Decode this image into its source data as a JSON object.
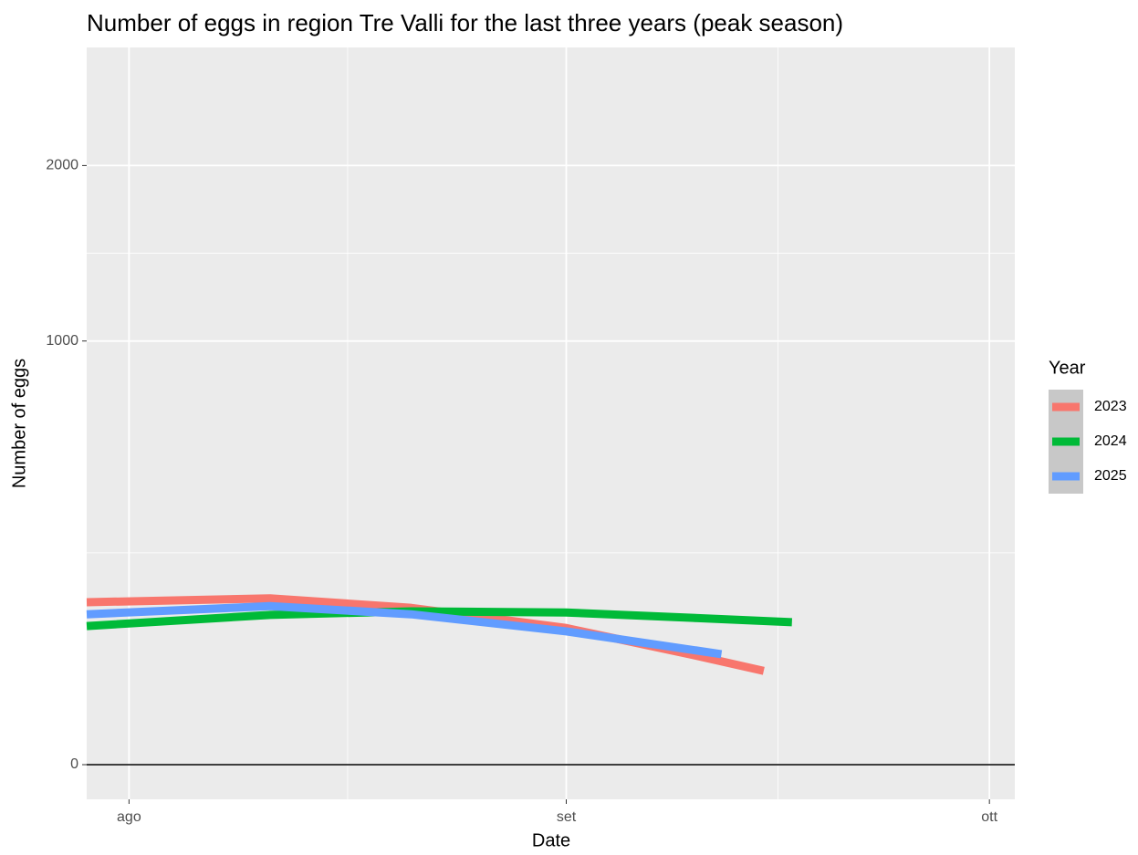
{
  "chart_data": {
    "type": "line",
    "title": "Number of eggs in region Tre Valli for the last three years (peak season)",
    "x_label": "Date",
    "y_label": "Number of eggs",
    "y_scale": "sqrt",
    "grid": true,
    "xlim": [
      -3,
      62.8
    ],
    "ylim": [
      0,
      2866
    ],
    "xticks": [
      {
        "value": 0,
        "label": "ago"
      },
      {
        "value": 31,
        "label": "set"
      },
      {
        "value": 61,
        "label": "ott"
      }
    ],
    "yticks": [
      0,
      1000,
      2000
    ],
    "legend_title": "Year",
    "legend_position": "right",
    "series": [
      {
        "name": "2023",
        "color": "#f8766d",
        "x": [
          -3,
          10,
          20,
          31,
          40,
          45
        ],
        "values": [
          147,
          154,
          137,
          104,
          67,
          49
        ]
      },
      {
        "name": "2024",
        "color": "#00ba38",
        "x": [
          -3,
          10,
          20,
          31,
          40,
          47
        ],
        "values": [
          107,
          125,
          131,
          129,
          120,
          113
        ]
      },
      {
        "name": "2025",
        "color": "#619cff",
        "x": [
          -3,
          10,
          20,
          31,
          42
        ],
        "values": [
          126,
          140,
          126,
          99,
          68
        ]
      }
    ]
  }
}
